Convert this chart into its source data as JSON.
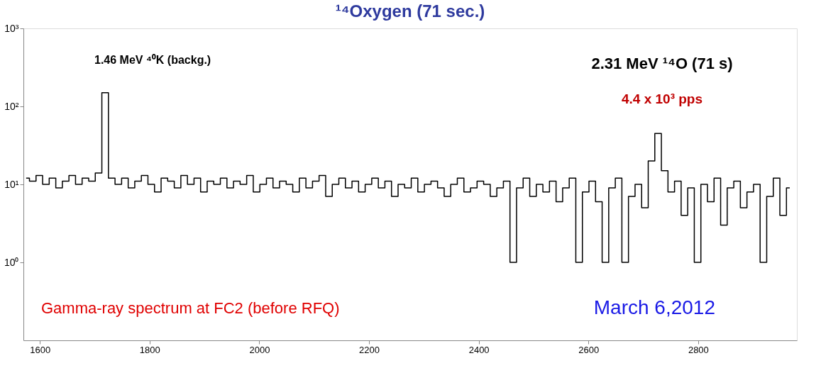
{
  "chart_data": {
    "type": "step",
    "title": "¹⁴Oxygen (71 sec.)",
    "x": [
      1575,
      1587,
      1599,
      1611,
      1623,
      1635,
      1647,
      1659,
      1671,
      1683,
      1695,
      1707,
      1719,
      1731,
      1743,
      1755,
      1767,
      1779,
      1791,
      1803,
      1815,
      1827,
      1839,
      1851,
      1863,
      1875,
      1887,
      1899,
      1911,
      1923,
      1935,
      1947,
      1959,
      1971,
      1983,
      1995,
      2007,
      2019,
      2031,
      2043,
      2055,
      2067,
      2079,
      2091,
      2103,
      2115,
      2127,
      2139,
      2151,
      2163,
      2175,
      2187,
      2199,
      2211,
      2223,
      2235,
      2247,
      2259,
      2271,
      2283,
      2295,
      2307,
      2319,
      2331,
      2343,
      2355,
      2367,
      2379,
      2391,
      2403,
      2415,
      2427,
      2439,
      2451,
      2463,
      2475,
      2487,
      2499,
      2511,
      2523,
      2535,
      2547,
      2559,
      2571,
      2583,
      2595,
      2607,
      2619,
      2631,
      2643,
      2655,
      2667,
      2679,
      2691,
      2703,
      2715,
      2727,
      2739,
      2751,
      2763,
      2775,
      2787,
      2799,
      2811,
      2823,
      2835,
      2847,
      2859,
      2871,
      2883,
      2895,
      2907,
      2919,
      2931,
      2943,
      2955,
      2967
    ],
    "series": [
      {
        "color": "#000000",
        "values": [
          12,
          11,
          13,
          10,
          12,
          9,
          11,
          13,
          10,
          12,
          11,
          14,
          150,
          12,
          10,
          12,
          9,
          11,
          13,
          10,
          8,
          12,
          11,
          9,
          13,
          10,
          12,
          8,
          11,
          10,
          12,
          9,
          11,
          10,
          13,
          8,
          10,
          12,
          9,
          11,
          10,
          8,
          12,
          9,
          11,
          13,
          7,
          10,
          12,
          9,
          11,
          8,
          10,
          12,
          9,
          11,
          7,
          10,
          9,
          12,
          8,
          10,
          11,
          9,
          7,
          10,
          12,
          8,
          9,
          11,
          10,
          7,
          9,
          11,
          1,
          9,
          12,
          7,
          10,
          8,
          11,
          6,
          9,
          12,
          1,
          8,
          11,
          6,
          1,
          9,
          12,
          1,
          7,
          10,
          5,
          20,
          45,
          15,
          8,
          11,
          4,
          9,
          1,
          10,
          6,
          12,
          3,
          9,
          11,
          5,
          8,
          10,
          1,
          7,
          12,
          4,
          9
        ]
      }
    ],
    "xlim": [
      1570,
      2980
    ],
    "xticks": [
      1600,
      1800,
      2000,
      2200,
      2400,
      2600,
      2800
    ],
    "log": "y",
    "ylim": [
      0.1,
      1000
    ],
    "yticks": [
      {
        "value": 1,
        "label": "10⁰"
      },
      {
        "value": 10,
        "label": "10¹"
      },
      {
        "value": 100,
        "label": "10²"
      },
      {
        "value": 1000,
        "label": "10³"
      }
    ],
    "grid": false,
    "annotations": [
      "1.46 MeV ⁴⁰K (backg.)",
      "2.31 MeV ¹⁴O (71 s)",
      "4.4 x 10³ pps",
      "Gamma-ray spectrum at FC2 (before RFQ)",
      "March 6,2012"
    ]
  }
}
